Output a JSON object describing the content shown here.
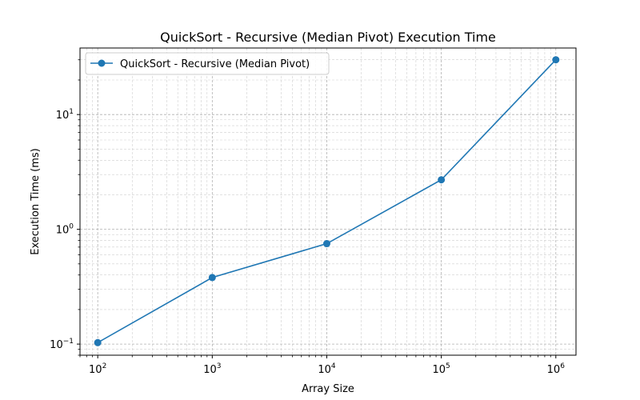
{
  "chart_data": {
    "type": "line",
    "title": "QuickSort - Recursive (Median Pivot) Execution Time",
    "xlabel": "Array Size",
    "ylabel": "Execution Time (ms)",
    "xscale": "log",
    "yscale": "log",
    "xlim": [
      70,
      1500000
    ],
    "ylim": [
      0.08,
      38
    ],
    "grid": true,
    "legend_position": "top-left",
    "x_ticks": [
      {
        "base": "10",
        "exp": "2",
        "value": 100
      },
      {
        "base": "10",
        "exp": "3",
        "value": 1000
      },
      {
        "base": "10",
        "exp": "4",
        "value": 10000
      },
      {
        "base": "10",
        "exp": "5",
        "value": 100000
      },
      {
        "base": "10",
        "exp": "6",
        "value": 1000000
      }
    ],
    "y_ticks": [
      {
        "base": "10",
        "exp": "−1",
        "value": 0.1
      },
      {
        "base": "10",
        "exp": "0",
        "value": 1
      },
      {
        "base": "10",
        "exp": "1",
        "value": 10
      }
    ],
    "series": [
      {
        "name": "QuickSort - Recursive (Median Pivot)",
        "color": "#1f77b4",
        "marker": "circle",
        "x": [
          100,
          1000,
          10000,
          100000,
          1000000
        ],
        "y": [
          0.103,
          0.38,
          0.75,
          2.7,
          30.0
        ]
      }
    ]
  }
}
